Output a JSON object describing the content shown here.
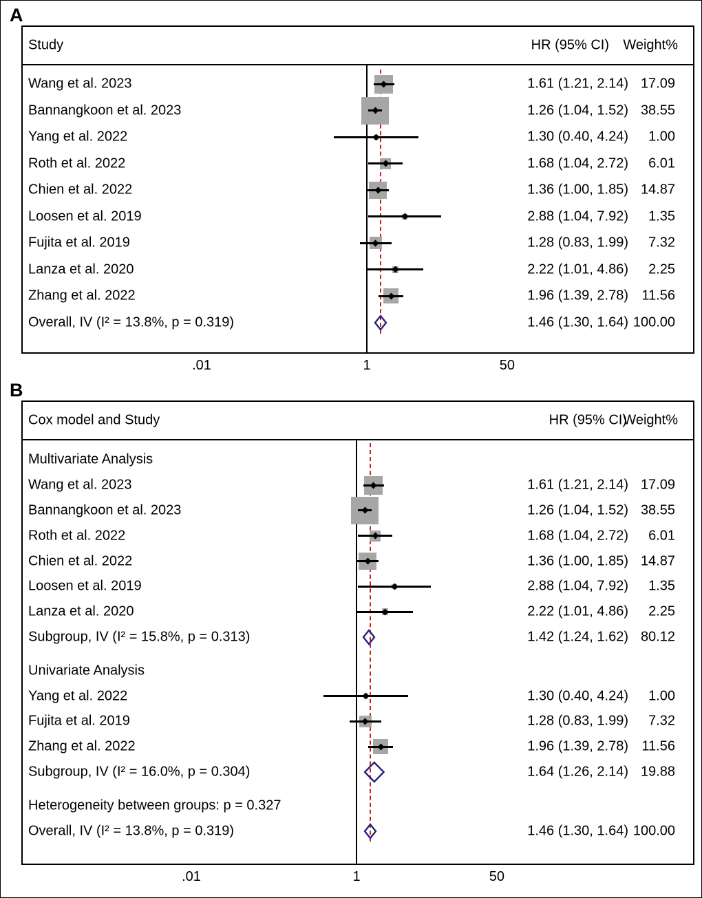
{
  "colors": {
    "weight_square": "#a6a6a6",
    "ci_line": "#000000",
    "point_marker": "#000000",
    "diamond_border": "#23237d",
    "null_line": "#000000",
    "pooled_line": "#a0382e",
    "text": "#000000"
  },
  "chart_data": [
    {
      "type": "forest",
      "panel_label": "A",
      "columns": {
        "study": "Study",
        "hr": "HR (95% CI)",
        "weight": "Weight%"
      },
      "axis": {
        "scale": "log",
        "ticks": [
          {
            "label": ".01",
            "value": 0.01
          },
          {
            "label": "1",
            "value": 1
          },
          {
            "label": "50",
            "value": 50
          }
        ]
      },
      "null_value": 1,
      "pooled_value": 1.46,
      "rows": [
        {
          "type": "study",
          "label": "Wang et al. 2023",
          "hr": 1.61,
          "ci": [
            1.21,
            2.14
          ],
          "hr_text": "1.61 (1.21, 2.14)",
          "weight": 17.09,
          "weight_text": "17.09"
        },
        {
          "type": "study",
          "label": "Bannangkoon et al. 2023",
          "hr": 1.26,
          "ci": [
            1.04,
            1.52
          ],
          "hr_text": "1.26 (1.04, 1.52)",
          "weight": 38.55,
          "weight_text": "38.55"
        },
        {
          "type": "study",
          "label": "Yang et al. 2022",
          "hr": 1.3,
          "ci": [
            0.4,
            4.24
          ],
          "hr_text": "1.30 (0.40, 4.24)",
          "weight": 1.0,
          "weight_text": "1.00"
        },
        {
          "type": "study",
          "label": "Roth et al. 2022",
          "hr": 1.68,
          "ci": [
            1.04,
            2.72
          ],
          "hr_text": "1.68 (1.04, 2.72)",
          "weight": 6.01,
          "weight_text": "6.01"
        },
        {
          "type": "study",
          "label": "Chien et al. 2022",
          "hr": 1.36,
          "ci": [
            1.0,
            1.85
          ],
          "hr_text": "1.36 (1.00, 1.85)",
          "weight": 14.87,
          "weight_text": "14.87"
        },
        {
          "type": "study",
          "label": "Loosen et al. 2019",
          "hr": 2.88,
          "ci": [
            1.04,
            7.92
          ],
          "hr_text": "2.88 (1.04, 7.92)",
          "weight": 1.35,
          "weight_text": "1.35"
        },
        {
          "type": "study",
          "label": "Fujita et al. 2019",
          "hr": 1.28,
          "ci": [
            0.83,
            1.99
          ],
          "hr_text": "1.28 (0.83, 1.99)",
          "weight": 7.32,
          "weight_text": "7.32"
        },
        {
          "type": "study",
          "label": "Lanza et al. 2020",
          "hr": 2.22,
          "ci": [
            1.01,
            4.86
          ],
          "hr_text": "2.22 (1.01, 4.86)",
          "weight": 2.25,
          "weight_text": "2.25"
        },
        {
          "type": "study",
          "label": "Zhang et al. 2022",
          "hr": 1.96,
          "ci": [
            1.39,
            2.78
          ],
          "hr_text": "1.96 (1.39, 2.78)",
          "weight": 11.56,
          "weight_text": "11.56"
        },
        {
          "type": "overall",
          "label": "Overall, IV (I² = 13.8%, p = 0.319)",
          "hr": 1.46,
          "ci": [
            1.3,
            1.64
          ],
          "hr_text": "1.46 (1.30, 1.64)",
          "weight_text": "100.00"
        }
      ]
    },
    {
      "type": "forest",
      "panel_label": "B",
      "columns": {
        "study": "Cox model and Study",
        "hr": "HR (95% CI)",
        "weight": "Weight%"
      },
      "axis": {
        "scale": "log",
        "ticks": [
          {
            "label": ".01",
            "value": 0.01
          },
          {
            "label": "1",
            "value": 1
          },
          {
            "label": "50",
            "value": 50
          }
        ]
      },
      "null_value": 1,
      "pooled_value": 1.46,
      "rows": [
        {
          "type": "group",
          "label": "Multivariate Analysis"
        },
        {
          "type": "study",
          "label": "Wang et al. 2023",
          "hr": 1.61,
          "ci": [
            1.21,
            2.14
          ],
          "hr_text": "1.61 (1.21, 2.14)",
          "weight": 17.09,
          "weight_text": "17.09"
        },
        {
          "type": "study",
          "label": "Bannangkoon et al. 2023",
          "hr": 1.26,
          "ci": [
            1.04,
            1.52
          ],
          "hr_text": "1.26 (1.04, 1.52)",
          "weight": 38.55,
          "weight_text": "38.55"
        },
        {
          "type": "study",
          "label": "Roth et al. 2022",
          "hr": 1.68,
          "ci": [
            1.04,
            2.72
          ],
          "hr_text": "1.68 (1.04, 2.72)",
          "weight": 6.01,
          "weight_text": "6.01"
        },
        {
          "type": "study",
          "label": "Chien et al. 2022",
          "hr": 1.36,
          "ci": [
            1.0,
            1.85
          ],
          "hr_text": "1.36 (1.00, 1.85)",
          "weight": 14.87,
          "weight_text": "14.87"
        },
        {
          "type": "study",
          "label": "Loosen et al. 2019",
          "hr": 2.88,
          "ci": [
            1.04,
            7.92
          ],
          "hr_text": "2.88 (1.04, 7.92)",
          "weight": 1.35,
          "weight_text": "1.35"
        },
        {
          "type": "study",
          "label": "Lanza et al. 2020",
          "hr": 2.22,
          "ci": [
            1.01,
            4.86
          ],
          "hr_text": "2.22 (1.01, 4.86)",
          "weight": 2.25,
          "weight_text": "2.25"
        },
        {
          "type": "subgroup",
          "label": "Subgroup, IV (I² = 15.8%, p = 0.313)",
          "hr": 1.42,
          "ci": [
            1.24,
            1.62
          ],
          "hr_text": "1.42 (1.24, 1.62)",
          "weight_text": "80.12"
        },
        {
          "type": "spacer"
        },
        {
          "type": "group",
          "label": "Univariate Analysis"
        },
        {
          "type": "study",
          "label": "Yang et al. 2022",
          "hr": 1.3,
          "ci": [
            0.4,
            4.24
          ],
          "hr_text": "1.30 (0.40, 4.24)",
          "weight": 1.0,
          "weight_text": "1.00"
        },
        {
          "type": "study",
          "label": "Fujita et al. 2019",
          "hr": 1.28,
          "ci": [
            0.83,
            1.99
          ],
          "hr_text": "1.28 (0.83, 1.99)",
          "weight": 7.32,
          "weight_text": "7.32"
        },
        {
          "type": "study",
          "label": "Zhang et al. 2022",
          "hr": 1.96,
          "ci": [
            1.39,
            2.78
          ],
          "hr_text": "1.96 (1.39, 2.78)",
          "weight": 11.56,
          "weight_text": "11.56"
        },
        {
          "type": "subgroup",
          "label": "Subgroup, IV (I² = 16.0%, p = 0.304)",
          "hr": 1.64,
          "ci": [
            1.26,
            2.14
          ],
          "hr_text": "1.64 (1.26, 2.14)",
          "weight_text": "19.88"
        },
        {
          "type": "spacer"
        },
        {
          "type": "note",
          "label": "Heterogeneity between groups: p = 0.327"
        },
        {
          "type": "overall",
          "label": "Overall, IV (I² = 13.8%, p = 0.319)",
          "hr": 1.46,
          "ci": [
            1.3,
            1.64
          ],
          "hr_text": "1.46 (1.30, 1.64)",
          "weight_text": "100.00"
        }
      ]
    }
  ]
}
